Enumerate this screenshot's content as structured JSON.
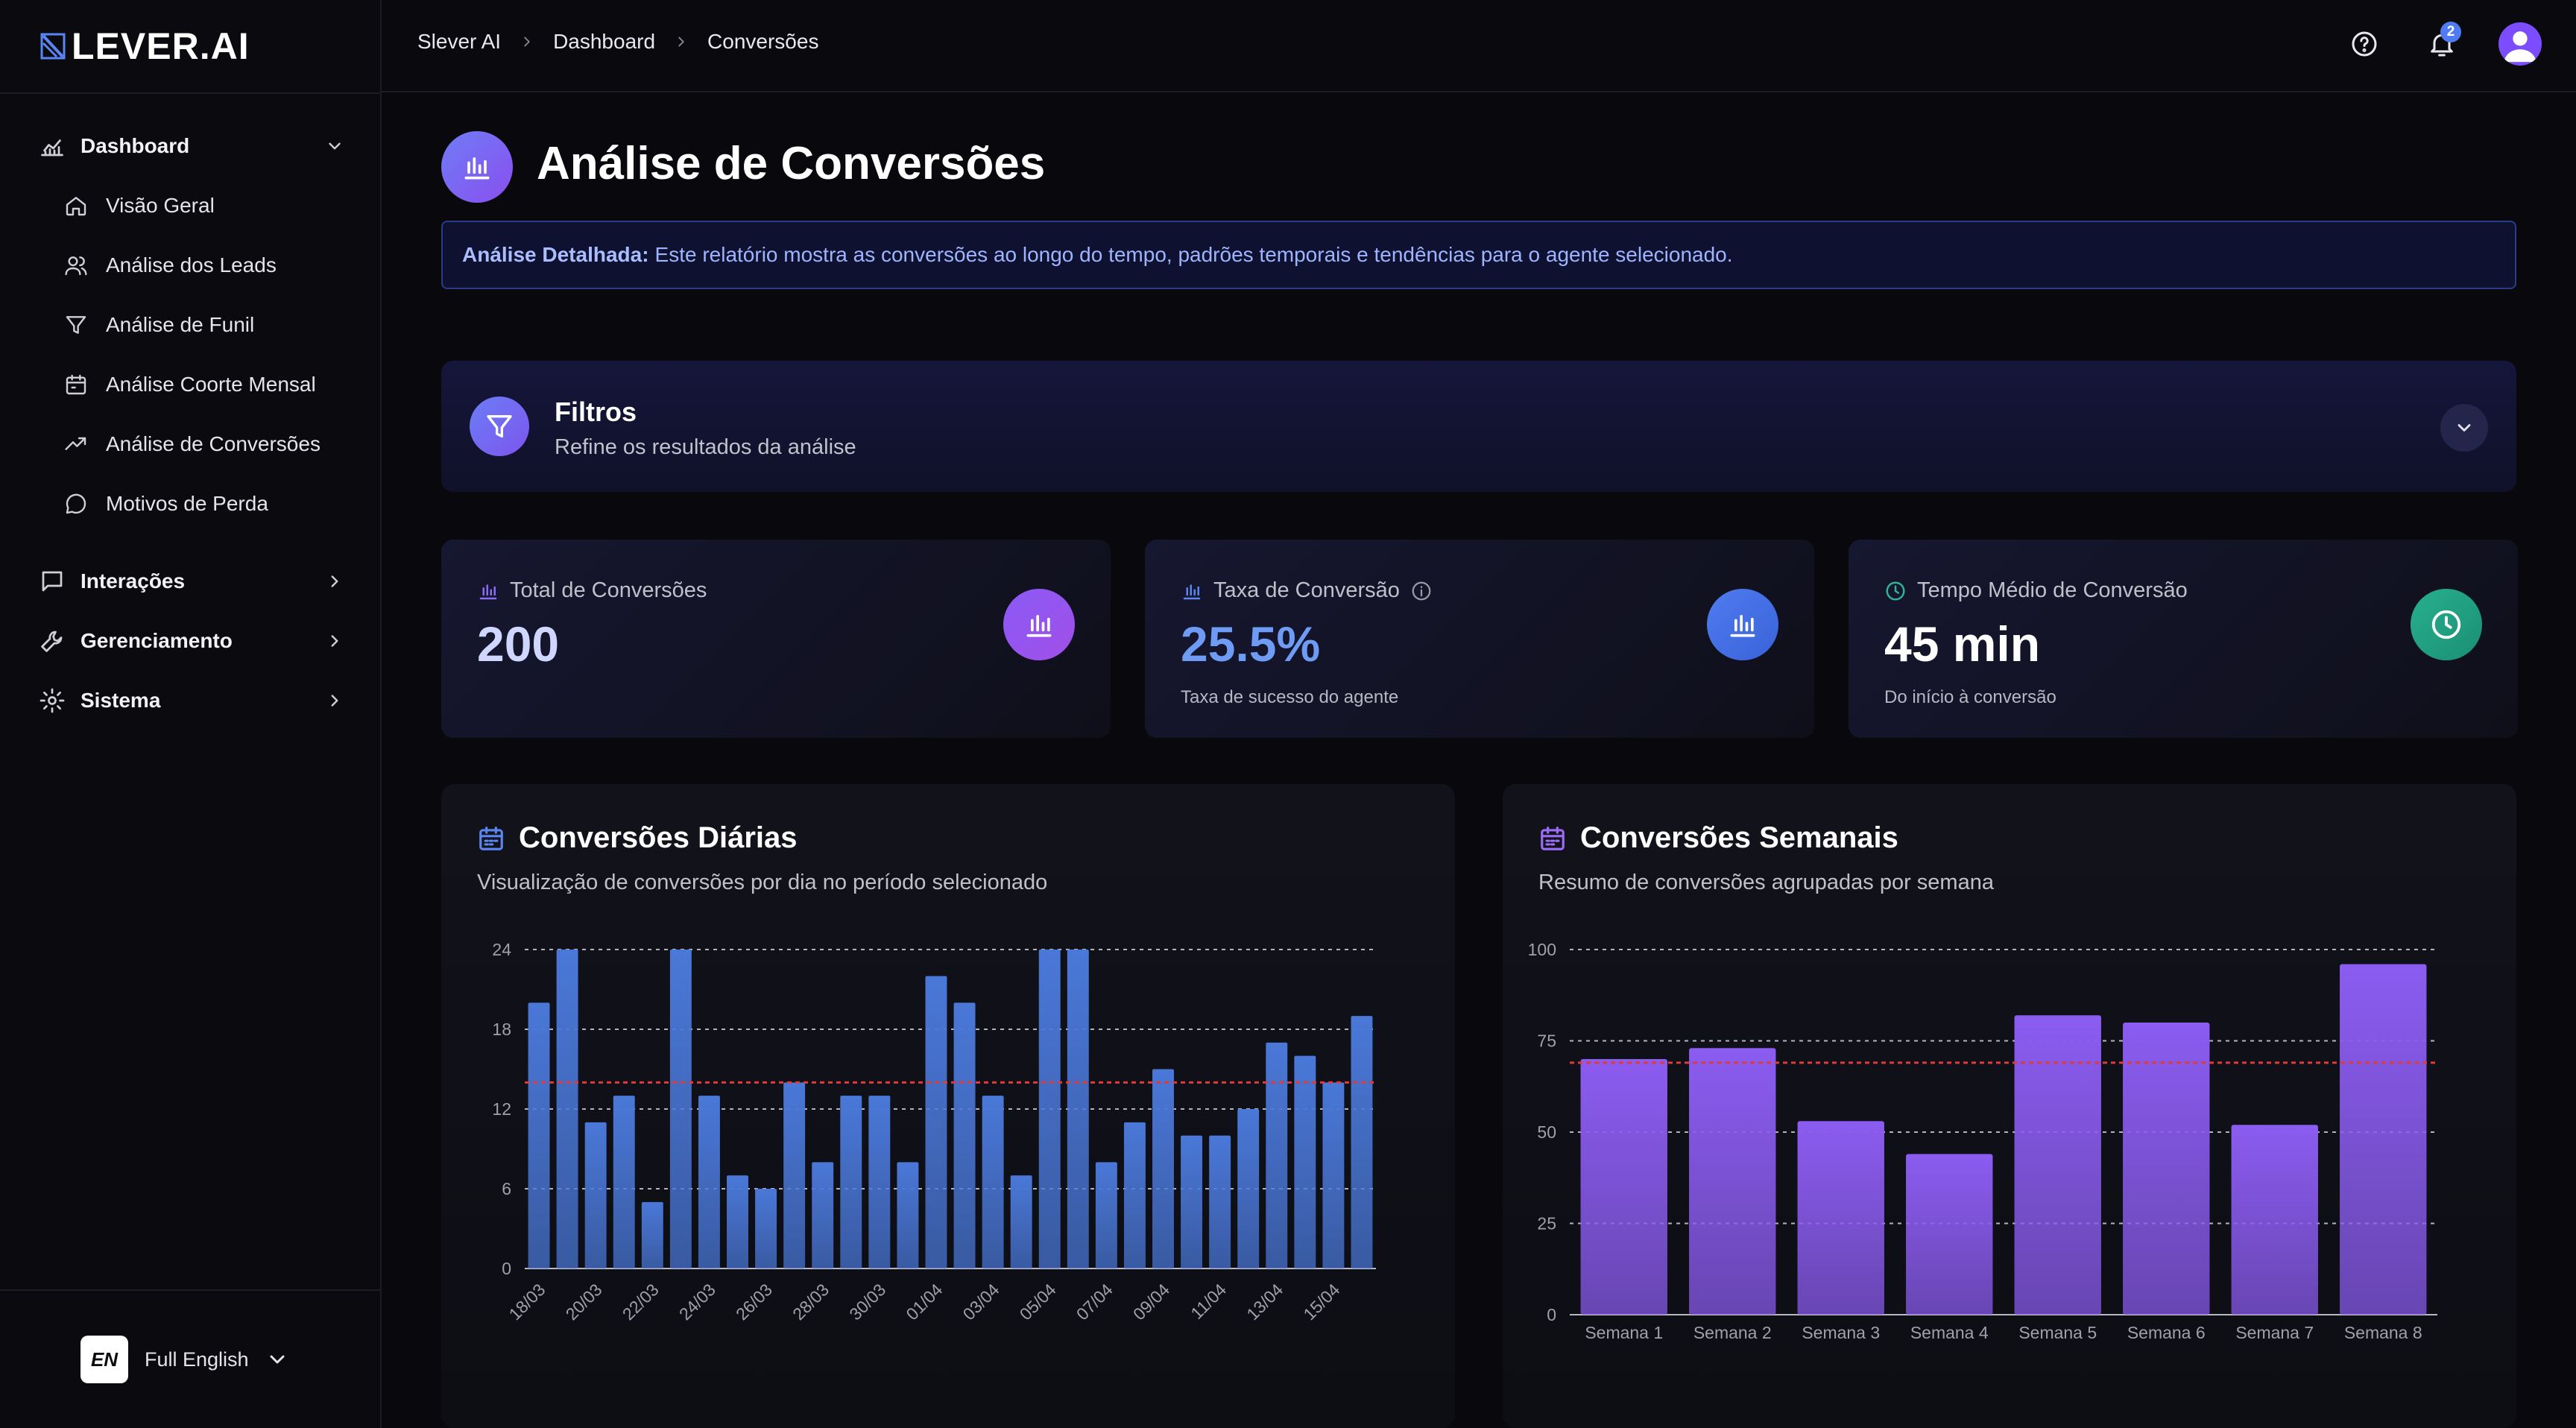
{
  "app": {
    "logo_text": "LEVER.AI"
  },
  "sidebar": {
    "groups": [
      {
        "label": "Dashboard",
        "icon": "chart-icon",
        "expanded": true
      },
      {
        "label": "Interações",
        "icon": "message-icon",
        "expanded": false
      },
      {
        "label": "Gerenciamento",
        "icon": "wrench-icon",
        "expanded": false
      },
      {
        "label": "Sistema",
        "icon": "gear-icon",
        "expanded": false
      }
    ],
    "dashboard_items": [
      {
        "label": "Visão Geral",
        "icon": "home-icon"
      },
      {
        "label": "Análise dos Leads",
        "icon": "users-icon"
      },
      {
        "label": "Análise de Funil",
        "icon": "funnel-icon"
      },
      {
        "label": "Análise Coorte Mensal",
        "icon": "calendar-icon"
      },
      {
        "label": "Análise de Conversões",
        "icon": "trending-icon"
      },
      {
        "label": "Motivos de Perda",
        "icon": "chat-icon"
      }
    ],
    "language": {
      "flag_text": "EN",
      "label": "Full English"
    }
  },
  "topbar": {
    "breadcrumbs": [
      "Slever AI",
      "Dashboard",
      "Conversões"
    ],
    "notification_count": "2"
  },
  "page": {
    "title": "Análise de Conversões",
    "info_bold": "Análise Detalhada:",
    "info_text": "Este relatório mostra as conversões ao longo do tempo, padrões temporais e tendências para o agente selecionado."
  },
  "filters": {
    "title": "Filtros",
    "subtitle": "Refine os resultados da análise"
  },
  "kpis": [
    {
      "label": "Total de Conversões",
      "value": "200",
      "sub": "",
      "value_color": "#cfd6ff",
      "icon_bg": "#7c4dff"
    },
    {
      "label": "Taxa de Conversão",
      "value": "25.5%",
      "sub": "Taxa de sucesso do agente",
      "value_color": "#6e9cf5",
      "icon_bg": "#3f6fe0"
    },
    {
      "label": "Tempo Médio de Conversão",
      "value": "45 min",
      "sub": "Do início à conversão",
      "value_color": "#ffffff",
      "icon_bg": "#1f9d83"
    }
  ],
  "daily_chart": {
    "title": "Conversões Diárias",
    "subtitle": "Visualização de conversões por dia no período selecionado"
  },
  "weekly_chart": {
    "title": "Conversões Semanais",
    "subtitle": "Resumo de conversões agrupadas por semana"
  },
  "chart_data": [
    {
      "type": "bar",
      "title": "Conversões Diárias",
      "x": [
        "18/03",
        "19/03",
        "20/03",
        "21/03",
        "22/03",
        "23/03",
        "24/03",
        "25/03",
        "26/03",
        "27/03",
        "28/03",
        "29/03",
        "30/03",
        "31/03",
        "01/04",
        "02/04",
        "03/04",
        "04/04",
        "05/04",
        "06/04",
        "07/04",
        "08/04",
        "09/04",
        "10/04",
        "11/04",
        "12/04",
        "13/04",
        "14/04",
        "15/04",
        "16/04"
      ],
      "tick_labels": [
        "18/03",
        "20/03",
        "22/03",
        "24/03",
        "26/03",
        "28/03",
        "30/03",
        "01/04",
        "03/04",
        "05/04",
        "07/04",
        "09/04",
        "11/04",
        "13/04",
        "15/04"
      ],
      "values": [
        20,
        24,
        11,
        13,
        5,
        24,
        13,
        7,
        6,
        14,
        8,
        13,
        13,
        8,
        22,
        20,
        13,
        7,
        24,
        24,
        8,
        11,
        15,
        10,
        10,
        12,
        17,
        16,
        14,
        19
      ],
      "average": 14,
      "ylim": [
        0,
        24
      ],
      "yticks": [
        0,
        6,
        12,
        18,
        24
      ],
      "grid": true,
      "bar_color": "#4a78d8",
      "average_color": "#e03a3a"
    },
    {
      "type": "bar",
      "title": "Conversões Semanais",
      "categories": [
        "Semana 1",
        "Semana 2",
        "Semana 3",
        "Semana 4",
        "Semana 5",
        "Semana 6",
        "Semana 7",
        "Semana 8"
      ],
      "values": [
        70,
        73,
        53,
        44,
        82,
        80,
        52,
        96
      ],
      "average": 69,
      "ylim": [
        0,
        100
      ],
      "yticks": [
        0,
        25,
        50,
        75,
        100
      ],
      "grid": true,
      "bar_color": "#8b5cf0",
      "average_color": "#e03a3a"
    }
  ]
}
